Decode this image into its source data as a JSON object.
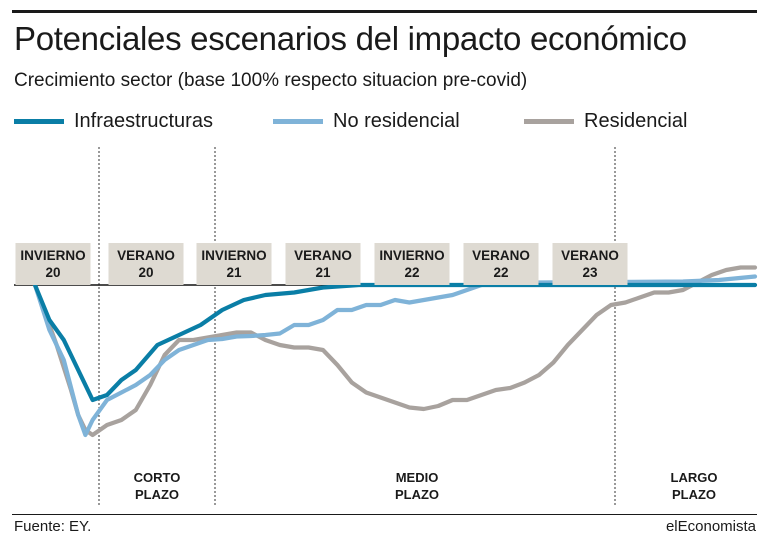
{
  "header": {
    "title": "Potenciales escenarios del impacto económico",
    "subtitle": "Crecimiento sector (base 100% respecto situacion pre-covid)"
  },
  "footer": {
    "source": "Fuente: EY.",
    "brand": "elEconomista"
  },
  "chart_data": {
    "type": "line",
    "baseline_value": 100,
    "grid": false,
    "legend_position": "top",
    "season_labels": [
      {
        "line1": "INVIERNO",
        "line2": "20"
      },
      {
        "line1": "VERANO",
        "line2": "20"
      },
      {
        "line1": "INVIERNO",
        "line2": "21"
      },
      {
        "line1": "VERANO",
        "line2": "21"
      },
      {
        "line1": "INVIERNO",
        "line2": "22"
      },
      {
        "line1": "VERANO",
        "line2": "22"
      },
      {
        "line1": "VERANO",
        "line2": "23"
      }
    ],
    "terms": [
      {
        "line1": "CORTO",
        "line2": "PLAZO"
      },
      {
        "line1": "MEDIO",
        "line2": "PLAZO"
      },
      {
        "line1": "LARGO",
        "line2": "PLAZO"
      }
    ],
    "series": [
      {
        "name": "Infraestructuras",
        "color": "#0a7ea6",
        "x": [
          0,
          2,
          4,
          6,
          8,
          10,
          12,
          14,
          17,
          20,
          23,
          26,
          29,
          32,
          36,
          40,
          45,
          50,
          55,
          60,
          65,
          70,
          80,
          100
        ],
        "values": [
          100,
          93,
          89,
          83,
          77,
          78,
          81,
          83,
          88,
          90,
          92,
          95,
          97,
          98,
          98.5,
          99.5,
          100,
          100,
          100,
          100,
          100,
          100,
          100,
          100
        ]
      },
      {
        "name": "No residencial",
        "color": "#7fb3d8",
        "x": [
          0,
          2,
          4,
          6,
          7,
          8,
          10,
          12,
          14,
          16,
          18,
          20,
          22,
          24,
          26,
          28,
          30,
          32,
          34,
          36,
          38,
          40,
          42,
          44,
          46,
          48,
          50,
          52,
          54,
          56,
          58,
          60,
          62,
          64,
          70,
          80,
          90,
          95,
          100
        ],
        "values": [
          100,
          91,
          85,
          74,
          70,
          73,
          77,
          78.5,
          80,
          82,
          85,
          87,
          88,
          89,
          89.2,
          89.7,
          89.8,
          90,
          90.3,
          92,
          92,
          93,
          95,
          95,
          96,
          96,
          97,
          96.5,
          97,
          97.5,
          98,
          99,
          100,
          100.5,
          100.5,
          100.6,
          100.7,
          101,
          101.7
        ]
      },
      {
        "name": "Residencial",
        "color": "#a8a29e",
        "x": [
          0,
          3,
          5,
          6,
          7,
          8,
          10,
          12,
          14,
          16,
          18,
          20,
          22,
          24,
          26,
          28,
          30,
          32,
          34,
          36,
          38,
          40,
          42,
          44,
          46,
          48,
          50,
          52,
          54,
          56,
          58,
          60,
          62,
          64,
          66,
          68,
          70,
          72,
          74,
          76,
          78,
          80,
          82,
          84,
          86,
          88,
          90,
          92,
          94,
          96,
          98,
          100
        ],
        "values": [
          100,
          88,
          79,
          74,
          71,
          70,
          72,
          73,
          75,
          80,
          86,
          89,
          89,
          89.5,
          90,
          90.5,
          90.5,
          89,
          88,
          87.5,
          87.5,
          87,
          84,
          80.5,
          78.5,
          77.5,
          76.5,
          75.5,
          75.2,
          75.8,
          77,
          77,
          78,
          79,
          79.4,
          80.5,
          82,
          84.5,
          88,
          91,
          94,
          96,
          96.5,
          97.5,
          98.5,
          98.5,
          99,
          100.5,
          102,
          103,
          103.5,
          103.5
        ]
      }
    ]
  }
}
